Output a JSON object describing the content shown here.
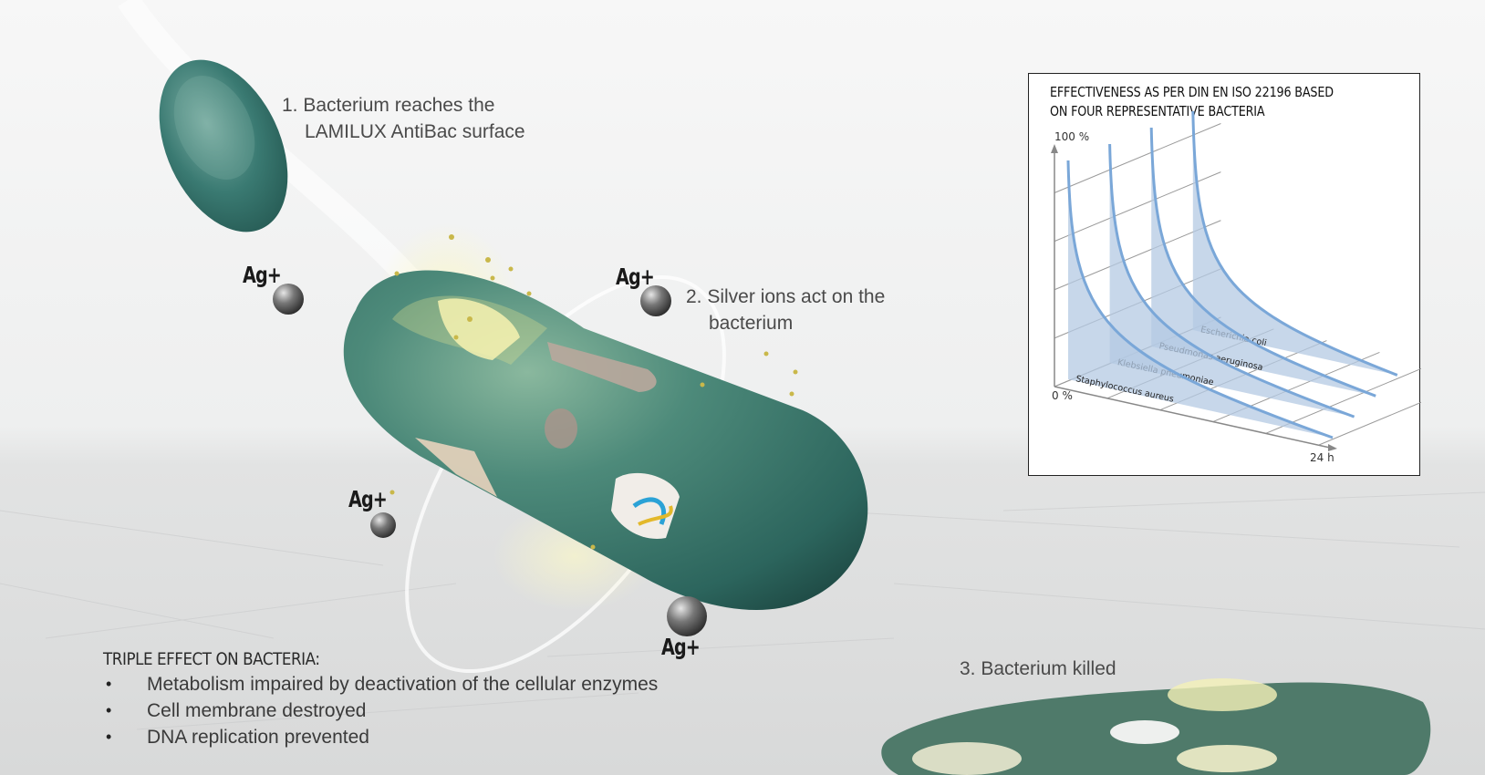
{
  "steps": {
    "step1_line1": "1. Bacterium reaches the",
    "step1_line2": "LAMILUX AntiBac surface",
    "step2_line1": "2. Silver ions act on the",
    "step2_line2": "bacterium",
    "step3": "3. Bacterium killed"
  },
  "ion_label": "Ag+",
  "triple_effect": {
    "title": "TRIPLE EFFECT ON BACTERIA:",
    "items": [
      "Metabolism impaired by deactivation of the cellular enzymes",
      "Cell membrane destroyed",
      "DNA replication prevented"
    ],
    "bullet": "•"
  },
  "chart_data": {
    "type": "area",
    "title": "EFFECTIVENESS AS PER DIN EN ISO 22196 BASED ON FOUR REPRESENTATIVE BACTERIA",
    "y_top_label": "100 %",
    "y_bottom_label": "0 %",
    "x_end_label": "24 h",
    "ylim": [
      0,
      100
    ],
    "series": [
      {
        "name": "Staphylococcus aureus"
      },
      {
        "name": "Klebsiella pneumoniae"
      },
      {
        "name": "Pseudmonas aeruginosa"
      },
      {
        "name": "Escherichia coli"
      }
    ],
    "colors": {
      "fill": "#b4c9e3",
      "stroke": "#7aa7d8",
      "grid": "#9a9a9a"
    }
  },
  "colors": {
    "bacterium": "#2f7068",
    "bacterium_light": "#6fa89e",
    "ion": "#5a5a5a",
    "glow": "#f3f0a8"
  }
}
